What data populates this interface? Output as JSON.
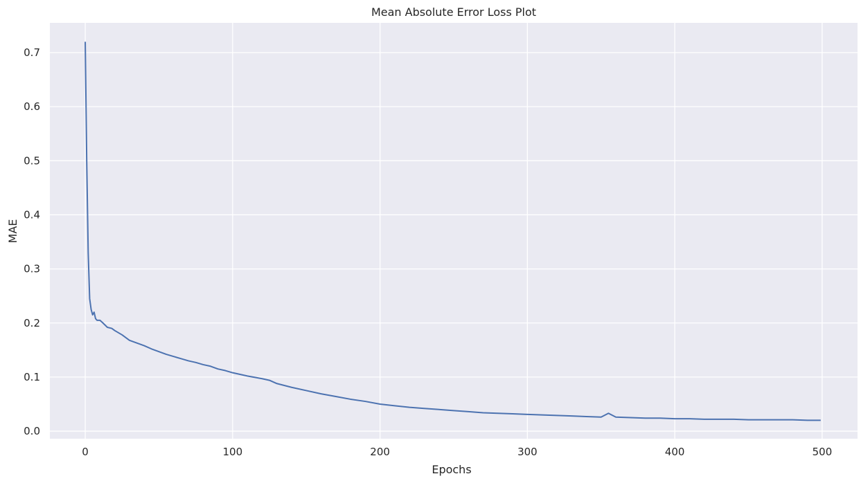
{
  "chart_data": {
    "type": "line",
    "title": "Mean Absolute Error Loss Plot",
    "xlabel": "Epochs",
    "ylabel": "MAE",
    "xlim": [
      -24,
      524
    ],
    "ylim": [
      -0.014,
      0.755
    ],
    "xticks": [
      0,
      100,
      200,
      300,
      400,
      500
    ],
    "yticks": [
      0.0,
      0.1,
      0.2,
      0.3,
      0.4,
      0.5,
      0.6,
      0.7
    ],
    "xtick_labels": [
      "0",
      "100",
      "200",
      "300",
      "400",
      "500"
    ],
    "ytick_labels": [
      "0.0",
      "0.1",
      "0.2",
      "0.3",
      "0.4",
      "0.5",
      "0.6",
      "0.7"
    ],
    "grid": true,
    "background": "#eaeaf2",
    "grid_color": "#ffffff",
    "series": [
      {
        "color": "#4c72b0",
        "x": [
          0,
          1,
          2,
          3,
          4,
          5,
          6,
          7,
          8,
          10,
          12,
          15,
          18,
          20,
          25,
          30,
          35,
          40,
          45,
          50,
          55,
          60,
          65,
          70,
          75,
          80,
          85,
          90,
          95,
          100,
          110,
          120,
          125,
          130,
          140,
          150,
          160,
          170,
          180,
          190,
          200,
          210,
          220,
          230,
          240,
          250,
          260,
          270,
          280,
          290,
          300,
          310,
          320,
          330,
          340,
          350,
          355,
          360,
          370,
          380,
          390,
          400,
          410,
          420,
          430,
          440,
          450,
          460,
          470,
          480,
          490,
          499
        ],
        "y": [
          0.72,
          0.5,
          0.33,
          0.245,
          0.225,
          0.215,
          0.22,
          0.208,
          0.205,
          0.205,
          0.2,
          0.192,
          0.19,
          0.186,
          0.178,
          0.168,
          0.163,
          0.158,
          0.152,
          0.147,
          0.142,
          0.138,
          0.134,
          0.13,
          0.127,
          0.123,
          0.12,
          0.115,
          0.112,
          0.108,
          0.102,
          0.097,
          0.094,
          0.088,
          0.081,
          0.075,
          0.069,
          0.064,
          0.059,
          0.055,
          0.05,
          0.047,
          0.044,
          0.042,
          0.04,
          0.038,
          0.036,
          0.034,
          0.033,
          0.032,
          0.031,
          0.03,
          0.029,
          0.028,
          0.027,
          0.026,
          0.033,
          0.026,
          0.025,
          0.024,
          0.024,
          0.023,
          0.023,
          0.022,
          0.022,
          0.022,
          0.021,
          0.021,
          0.021,
          0.021,
          0.02,
          0.02
        ]
      }
    ]
  }
}
